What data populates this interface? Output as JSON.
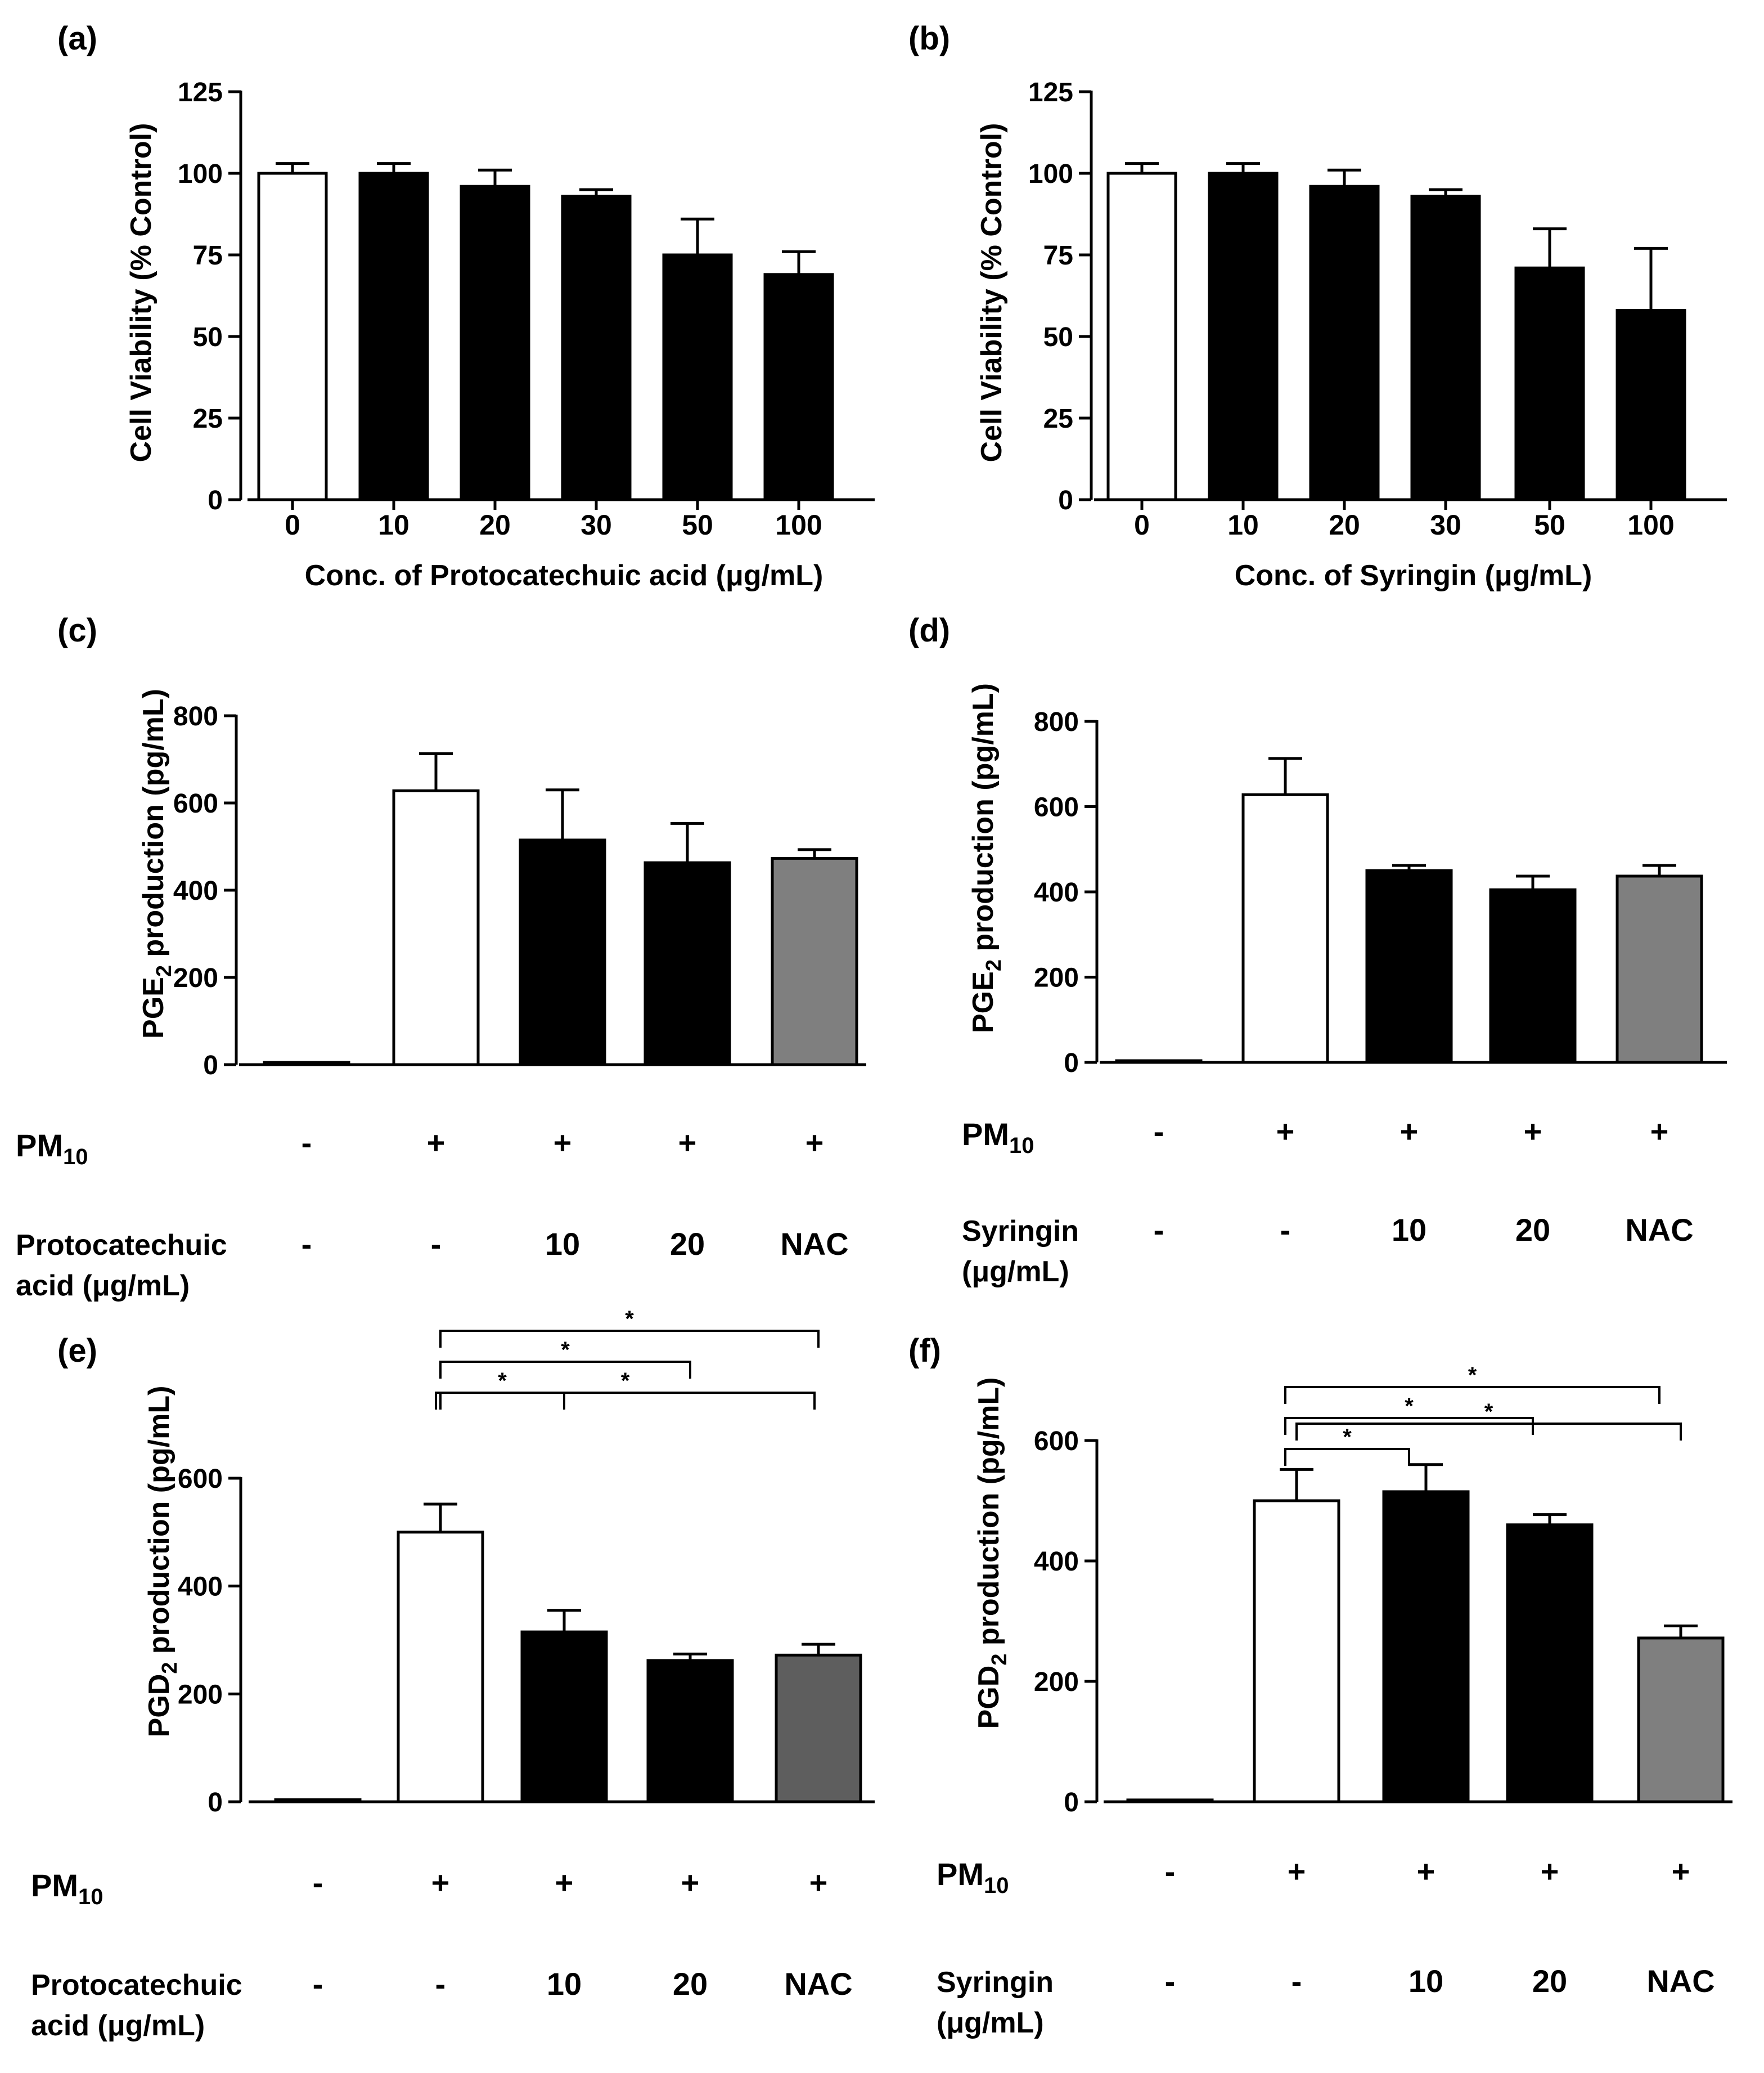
{
  "colors": {
    "white": "#ffffff",
    "black": "#000000",
    "nac_gray_c": "#7f7f7f",
    "nac_gray_d": "#7f7f7f",
    "nac_gray_e": "#5e5e5e",
    "nac_gray_f": "#7f7f7f"
  },
  "chart_data": [
    {
      "panel": "(a)",
      "type": "bar",
      "categories": [
        "0",
        "10",
        "20",
        "30",
        "50",
        "100"
      ],
      "values": [
        100,
        100,
        96,
        93,
        75,
        69
      ],
      "errors": [
        3,
        3,
        5,
        2,
        11,
        7
      ],
      "fills": [
        "white",
        "black",
        "black",
        "black",
        "black",
        "black"
      ],
      "ylabel": "Cell Viability (% Control)",
      "xlabel": "Conc. of Protocatechuic acid (μg/mL)",
      "ylim": [
        0,
        125
      ],
      "yticks": [
        "0",
        "25",
        "50",
        "75",
        "100",
        "125"
      ]
    },
    {
      "panel": "(b)",
      "type": "bar",
      "categories": [
        "0",
        "10",
        "20",
        "30",
        "50",
        "100"
      ],
      "values": [
        100,
        100,
        96,
        93,
        71,
        58
      ],
      "errors": [
        3,
        3,
        5,
        2,
        12,
        19
      ],
      "fills": [
        "white",
        "black",
        "black",
        "black",
        "black",
        "black"
      ],
      "ylabel": "Cell Viability (% Control)",
      "xlabel": "Conc. of Syringin (μg/mL)",
      "ylim": [
        0,
        125
      ],
      "yticks": [
        "0",
        "25",
        "50",
        "75",
        "100",
        "125"
      ]
    },
    {
      "panel": "(c)",
      "type": "bar",
      "values": [
        5,
        628,
        515,
        463,
        473
      ],
      "errors": [
        0,
        85,
        115,
        90,
        20
      ],
      "fills": [
        "white",
        "white",
        "black",
        "black",
        "nac_gray_c"
      ],
      "ylabel_main": "PGE",
      "ylabel_sub": "2",
      "ylabel_rest": " production (pg/mL)",
      "ylim": [
        0,
        800
      ],
      "yticks": [
        "0",
        "200",
        "400",
        "600",
        "800"
      ],
      "sig": [
        {
          "from": 1,
          "to": 4,
          "label": "*"
        }
      ],
      "row1": {
        "label_main": "PM",
        "label_sub": "10",
        "values": [
          "-",
          "+",
          "+",
          "+",
          "+"
        ]
      },
      "row2": {
        "label_lines": [
          "Protocatechuic",
          "acid (μg/mL)"
        ],
        "values": [
          "-",
          "-",
          "10",
          "20",
          "NAC"
        ]
      }
    },
    {
      "panel": "(d)",
      "type": "bar",
      "values": [
        3,
        628,
        450,
        405,
        437
      ],
      "errors": [
        0,
        85,
        12,
        32,
        25
      ],
      "fills": [
        "white",
        "white",
        "black",
        "black",
        "nac_gray_d"
      ],
      "ylabel_main": "PGE",
      "ylabel_sub": "2",
      "ylabel_rest": " production (pg/mL)",
      "ylim": [
        0,
        800
      ],
      "yticks": [
        "0",
        "200",
        "400",
        "600",
        "800"
      ],
      "sig": [
        {
          "from": 1,
          "to": 2,
          "label": "*"
        },
        {
          "from": 1,
          "to": 3,
          "label": "*"
        },
        {
          "from": 1,
          "to": 4,
          "label": "*"
        }
      ],
      "row1": {
        "label_main": "PM",
        "label_sub": "10",
        "values": [
          "-",
          "+",
          "+",
          "+",
          "+"
        ]
      },
      "row2": {
        "label_lines": [
          "Syringin",
          "(μg/mL)"
        ],
        "values": [
          "-",
          "-",
          "10",
          "20",
          "NAC"
        ]
      }
    },
    {
      "panel": "(e)",
      "type": "bar",
      "values": [
        4,
        500,
        315,
        262,
        272
      ],
      "errors": [
        0,
        52,
        40,
        12,
        20
      ],
      "fills": [
        "white",
        "white",
        "black",
        "black",
        "nac_gray_e"
      ],
      "ylabel_main": "PGD",
      "ylabel_sub": "2",
      "ylabel_rest": " production (pg/mL)",
      "ylim": [
        0,
        600
      ],
      "yticks": [
        "0",
        "200",
        "400",
        "600"
      ],
      "sig": [
        {
          "from": 1,
          "to": 2,
          "label": "*"
        },
        {
          "from": 1,
          "to": 3,
          "label": "*"
        },
        {
          "from": 1,
          "to": 4,
          "label": "*"
        }
      ],
      "row1": {
        "label_main": "PM",
        "label_sub": "10",
        "values": [
          "-",
          "+",
          "+",
          "+",
          "+"
        ]
      },
      "row2": {
        "label_lines": [
          "Protocatechuic",
          "acid (μg/mL)"
        ],
        "values": [
          "-",
          "-",
          "10",
          "20",
          "NAC"
        ]
      }
    },
    {
      "panel": "(f)",
      "type": "bar",
      "values": [
        3,
        500,
        515,
        460,
        272
      ],
      "errors": [
        0,
        52,
        45,
        17,
        20
      ],
      "fills": [
        "white",
        "white",
        "black",
        "black",
        "nac_gray_f"
      ],
      "ylabel_main": "PGD",
      "ylabel_sub": "2",
      "ylabel_rest": " production (pg/mL)",
      "ylim": [
        0,
        600
      ],
      "yticks": [
        "0",
        "200",
        "400",
        "600"
      ],
      "sig": [
        {
          "from": 1,
          "to": 4,
          "label": "*"
        }
      ],
      "row1": {
        "label_main": "PM",
        "label_sub": "10",
        "values": [
          "-",
          "+",
          "+",
          "+",
          "+"
        ]
      },
      "row2": {
        "label_lines": [
          "Syringin",
          "(μg/mL)"
        ],
        "values": [
          "-",
          "-",
          "10",
          "20",
          "NAC"
        ]
      }
    }
  ]
}
